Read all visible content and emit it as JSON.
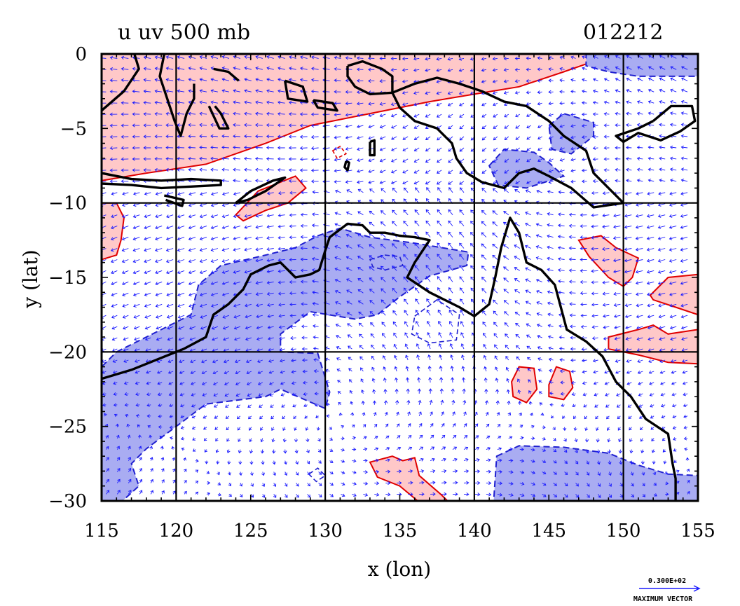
{
  "header": {
    "title": "u uv 500 mb",
    "date_code": "012212"
  },
  "chart_data": {
    "type": "map",
    "xlabel": "x (lon)",
    "ylabel": "y (lat)",
    "xlim": [
      115,
      155
    ],
    "ylim": [
      -30,
      0
    ],
    "x_ticks": [
      115,
      120,
      125,
      130,
      135,
      140,
      145,
      150,
      155
    ],
    "y_ticks": [
      0,
      -5,
      -10,
      -15,
      -20,
      -25,
      -30
    ],
    "x_tick_labels": [
      "115",
      "120",
      "125",
      "130",
      "135",
      "140",
      "145",
      "150",
      "155"
    ],
    "y_tick_labels": [
      "0",
      "−5",
      "−10",
      "−15",
      "−20",
      "−25",
      "−30"
    ],
    "grid_lon": [
      120,
      130,
      140,
      150
    ],
    "grid_lat": [
      -10,
      -20
    ],
    "positive_anomaly_color": "#ffc8c8",
    "positive_contour_color": "#e00000",
    "negative_anomaly_color": "#a9acf2",
    "negative_contour_color": "#2020d0",
    "coastline_color": "#000000",
    "vector_color": "#1a1aff",
    "reference_vector": {
      "label": "0.300E+02",
      "caption": "MAXIMUM VECTOR"
    },
    "positive_regions": [
      [
        [
          115,
          0
        ],
        [
          155,
          0
        ],
        [
          155,
          -0.3
        ],
        [
          148,
          -0.5
        ],
        [
          146,
          -1.2
        ],
        [
          143,
          -2.2
        ],
        [
          140,
          -2.7
        ],
        [
          137,
          -3.2
        ],
        [
          133,
          -4
        ],
        [
          129,
          -4.8
        ],
        [
          126,
          -6
        ],
        [
          122,
          -7.4
        ],
        [
          118,
          -8
        ],
        [
          115,
          -8.5
        ]
      ],
      [
        [
          115,
          -10
        ],
        [
          116,
          -10
        ],
        [
          116.5,
          -11
        ],
        [
          116.3,
          -12.5
        ],
        [
          116,
          -13.5
        ],
        [
          115,
          -13.8
        ]
      ],
      [
        [
          124,
          -10.8
        ],
        [
          125.5,
          -9.2
        ],
        [
          127,
          -8.6
        ],
        [
          128,
          -8.2
        ],
        [
          128.7,
          -9
        ],
        [
          127.5,
          -10
        ],
        [
          126,
          -10.5
        ],
        [
          124.5,
          -11.2
        ]
      ],
      [
        [
          147,
          -12.5
        ],
        [
          148.5,
          -12.2
        ],
        [
          149.5,
          -13
        ],
        [
          151,
          -13.7
        ],
        [
          150.6,
          -15
        ],
        [
          150,
          -15.6
        ],
        [
          149,
          -15
        ],
        [
          147.7,
          -13.6
        ]
      ],
      [
        [
          151.8,
          -16.2
        ],
        [
          153,
          -15
        ],
        [
          155,
          -14.8
        ],
        [
          155,
          -17.5
        ],
        [
          153.5,
          -17
        ],
        [
          152,
          -16.5
        ]
      ],
      [
        [
          149,
          -19
        ],
        [
          151,
          -18.5
        ],
        [
          152,
          -18.2
        ],
        [
          153,
          -18.8
        ],
        [
          155,
          -18.5
        ],
        [
          155,
          -20.8
        ],
        [
          153,
          -20.7
        ],
        [
          151,
          -20.2
        ],
        [
          149,
          -19.8
        ]
      ],
      [
        [
          142.5,
          -22
        ],
        [
          143,
          -21
        ],
        [
          144,
          -21.1
        ],
        [
          144.2,
          -22.5
        ],
        [
          143.5,
          -23.4
        ],
        [
          142.6,
          -23
        ]
      ],
      [
        [
          145,
          -22.2
        ],
        [
          145.5,
          -21
        ],
        [
          146.4,
          -21.3
        ],
        [
          146.6,
          -22.4
        ],
        [
          146,
          -23.2
        ],
        [
          145,
          -23
        ]
      ],
      [
        [
          133,
          -27.4
        ],
        [
          134.5,
          -27
        ],
        [
          135.2,
          -27.3
        ],
        [
          136,
          -27.1
        ],
        [
          136.3,
          -28.3
        ],
        [
          137.8,
          -29.6
        ],
        [
          138.2,
          -30
        ],
        [
          136.2,
          -30
        ],
        [
          135,
          -29
        ],
        [
          133.5,
          -28.4
        ]
      ]
    ],
    "negative_regions": [
      [
        [
          147.5,
          0
        ],
        [
          155,
          0
        ],
        [
          155,
          -1.5
        ],
        [
          151,
          -1.5
        ],
        [
          149,
          -1.2
        ],
        [
          147.5,
          -0.8
        ]
      ],
      [
        [
          145,
          -4.8
        ],
        [
          146,
          -4
        ],
        [
          148,
          -4.6
        ],
        [
          148,
          -5.5
        ],
        [
          146.5,
          -6.7
        ],
        [
          145.2,
          -6.4
        ]
      ],
      [
        [
          141,
          -7.5
        ],
        [
          142,
          -6.4
        ],
        [
          144,
          -6.6
        ],
        [
          145,
          -7.3
        ],
        [
          146,
          -8.2
        ],
        [
          143.5,
          -9
        ],
        [
          141.6,
          -8.8
        ]
      ],
      [
        [
          116,
          -20
        ],
        [
          118,
          -19
        ],
        [
          121,
          -17.5
        ],
        [
          121.5,
          -15.5
        ],
        [
          123,
          -14.2
        ],
        [
          126,
          -13.5
        ],
        [
          128,
          -13
        ],
        [
          129.5,
          -12.2
        ],
        [
          131,
          -11.7
        ],
        [
          133,
          -12.3
        ],
        [
          136,
          -12.7
        ],
        [
          139.6,
          -13.3
        ],
        [
          139.5,
          -14.2
        ],
        [
          137,
          -14.9
        ],
        [
          135,
          -16.3
        ],
        [
          133.5,
          -17.5
        ],
        [
          132,
          -17.8
        ],
        [
          129,
          -17.3
        ],
        [
          127,
          -18.8
        ],
        [
          127,
          -20
        ],
        [
          129.5,
          -20.1
        ],
        [
          130.3,
          -22.7
        ],
        [
          130,
          -23.8
        ],
        [
          127,
          -22.5
        ],
        [
          126,
          -23
        ],
        [
          122,
          -23.5
        ],
        [
          120,
          -25
        ],
        [
          118,
          -26.5
        ],
        [
          117,
          -27.5
        ],
        [
          117.5,
          -29
        ],
        [
          116.4,
          -30
        ],
        [
          115,
          -30
        ],
        [
          115,
          -21
        ]
      ],
      [
        [
          141.5,
          -27
        ],
        [
          143,
          -26.3
        ],
        [
          146,
          -26.4
        ],
        [
          149,
          -26.8
        ],
        [
          151,
          -27.6
        ],
        [
          153,
          -28.2
        ],
        [
          155,
          -28.3
        ],
        [
          155,
          -30
        ],
        [
          141.3,
          -30
        ]
      ]
    ],
    "coastline_segments": [
      [
        [
          115,
          -21.8
        ],
        [
          117,
          -21.2
        ],
        [
          119,
          -20.4
        ],
        [
          120.5,
          -19.8
        ],
        [
          122,
          -19
        ],
        [
          122.5,
          -17.5
        ],
        [
          123.5,
          -16.8
        ],
        [
          124.5,
          -15.8
        ],
        [
          125,
          -14.8
        ],
        [
          126.2,
          -14.2
        ],
        [
          127,
          -14
        ],
        [
          128,
          -15
        ],
        [
          129,
          -14.8
        ],
        [
          129.6,
          -14.5
        ],
        [
          130,
          -13.2
        ],
        [
          130.3,
          -12.3
        ],
        [
          131.5,
          -11.4
        ],
        [
          132.5,
          -11.5
        ],
        [
          133,
          -12
        ],
        [
          134,
          -12
        ],
        [
          135,
          -12.2
        ],
        [
          136,
          -12.3
        ],
        [
          137,
          -12.5
        ],
        [
          136,
          -14
        ],
        [
          135.5,
          -15
        ],
        [
          137,
          -16
        ],
        [
          139,
          -17
        ],
        [
          140,
          -17.6
        ],
        [
          141,
          -16.8
        ],
        [
          141.4,
          -15
        ],
        [
          141.8,
          -13
        ],
        [
          142.4,
          -11
        ],
        [
          143,
          -12
        ],
        [
          143.5,
          -14
        ],
        [
          144.5,
          -14.5
        ],
        [
          145.4,
          -15.5
        ],
        [
          145.8,
          -17
        ],
        [
          146.2,
          -18.5
        ],
        [
          147.5,
          -19.3
        ],
        [
          148.6,
          -20.3
        ],
        [
          149.5,
          -22
        ],
        [
          150.5,
          -23
        ],
        [
          151.5,
          -24.5
        ],
        [
          153,
          -25.5
        ],
        [
          153.3,
          -27.5
        ],
        [
          153.5,
          -28.5
        ],
        [
          153.5,
          -30
        ]
      ],
      [
        [
          115,
          -3.8
        ],
        [
          116.5,
          -2.5
        ],
        [
          117.5,
          -1
        ],
        [
          117.2,
          0
        ]
      ],
      [
        [
          119.2,
          0
        ],
        [
          118.9,
          -1.5
        ],
        [
          119.4,
          -3
        ],
        [
          119.9,
          -4.5
        ],
        [
          120.3,
          -5.5
        ],
        [
          120.7,
          -4
        ],
        [
          121.2,
          -3
        ],
        [
          121.2,
          -2
        ]
      ],
      [
        [
          122.5,
          -1
        ],
        [
          123.5,
          -1.2
        ],
        [
          124.2,
          -1.8
        ]
      ],
      [
        [
          122.2,
          -3.5
        ],
        [
          122.9,
          -5
        ],
        [
          123.5,
          -5
        ],
        [
          123,
          -4
        ],
        [
          122.6,
          -3.5
        ]
      ],
      [
        [
          127.3,
          -1.8
        ],
        [
          128.5,
          -2.2
        ],
        [
          128.8,
          -3.2
        ],
        [
          127.5,
          -3
        ],
        [
          127.3,
          -1.8
        ]
      ],
      [
        [
          129.2,
          -3.1
        ],
        [
          130.5,
          -3.3
        ],
        [
          130.8,
          -3.8
        ],
        [
          129.5,
          -3.6
        ],
        [
          129.2,
          -3.1
        ]
      ],
      [
        [
          131.5,
          -0.8
        ],
        [
          132.5,
          -0.5
        ],
        [
          133.8,
          -1
        ],
        [
          134.5,
          -1.5
        ],
        [
          134.5,
          -2.6
        ],
        [
          133,
          -2.7
        ],
        [
          132,
          -2.2
        ],
        [
          131.5,
          -1.5
        ],
        [
          131.5,
          -0.8
        ]
      ],
      [
        [
          134.5,
          -2.6
        ],
        [
          136,
          -2
        ],
        [
          137.5,
          -1.6
        ],
        [
          139,
          -2
        ],
        [
          140.5,
          -2.5
        ],
        [
          142,
          -3.2
        ],
        [
          143.5,
          -3.5
        ],
        [
          145,
          -4.5
        ],
        [
          146,
          -5.5
        ],
        [
          147.5,
          -6.5
        ],
        [
          148,
          -8
        ],
        [
          149,
          -9
        ],
        [
          150,
          -10
        ],
        [
          148,
          -10.3
        ],
        [
          146.5,
          -9
        ],
        [
          145,
          -8.2
        ],
        [
          144,
          -7.7
        ],
        [
          143,
          -8
        ],
        [
          142,
          -9
        ],
        [
          140.5,
          -8.6
        ],
        [
          139.5,
          -8
        ],
        [
          138.8,
          -7
        ],
        [
          138.5,
          -6
        ],
        [
          137.5,
          -5
        ],
        [
          136,
          -4.5
        ],
        [
          135,
          -3.6
        ],
        [
          134.5,
          -2.6
        ]
      ],
      [
        [
          115,
          -8
        ],
        [
          117,
          -8.4
        ],
        [
          119,
          -8.5
        ],
        [
          121,
          -8.4
        ],
        [
          123,
          -8.5
        ],
        [
          123,
          -8.8
        ],
        [
          121,
          -8.9
        ],
        [
          119,
          -9
        ],
        [
          117,
          -8.8
        ],
        [
          115,
          -8.7
        ]
      ],
      [
        [
          119.2,
          -9.5
        ],
        [
          120.5,
          -9.8
        ],
        [
          120.4,
          -10.2
        ],
        [
          119.3,
          -9.8
        ]
      ],
      [
        [
          124,
          -10
        ],
        [
          125,
          -9.2
        ],
        [
          126.5,
          -8.5
        ],
        [
          127.3,
          -8.3
        ],
        [
          126,
          -9.2
        ],
        [
          124.8,
          -9.8
        ],
        [
          124,
          -10
        ]
      ],
      [
        [
          152,
          -4.5
        ],
        [
          153.2,
          -3.5
        ],
        [
          154.6,
          -3.5
        ],
        [
          154.8,
          -4.5
        ],
        [
          153.8,
          -5.2
        ],
        [
          152.5,
          -5.8
        ],
        [
          151,
          -5.3
        ],
        [
          150,
          -5.9
        ],
        [
          149.5,
          -5.5
        ],
        [
          151,
          -5
        ],
        [
          152,
          -4.5
        ]
      ],
      [
        [
          133,
          -5.9
        ],
        [
          133.3,
          -5.8
        ],
        [
          133.3,
          -6.8
        ],
        [
          133,
          -6.8
        ],
        [
          133,
          -5.9
        ]
      ],
      [
        [
          131.4,
          -7.2
        ],
        [
          131.6,
          -7.3
        ],
        [
          131.5,
          -7.8
        ],
        [
          131.3,
          -7.6
        ],
        [
          131.4,
          -7.2
        ]
      ]
    ],
    "negative_dashed_contours": [
      [
        [
          133,
          -13.8
        ],
        [
          134,
          -13.5
        ],
        [
          135,
          -13.6
        ],
        [
          135.2,
          -14.2
        ],
        [
          134,
          -14.5
        ],
        [
          133.2,
          -14.3
        ],
        [
          133,
          -13.8
        ]
      ],
      [
        [
          136,
          -17.6
        ],
        [
          137.5,
          -16.5
        ],
        [
          139,
          -17.5
        ],
        [
          138.8,
          -19.2
        ],
        [
          137,
          -19.4
        ],
        [
          135.8,
          -18.8
        ],
        [
          136,
          -17.6
        ]
      ],
      [
        [
          128.9,
          -28.2
        ],
        [
          129.5,
          -27.8
        ],
        [
          130,
          -28.3
        ],
        [
          129.4,
          -28.7
        ],
        [
          128.9,
          -28.2
        ]
      ]
    ],
    "positive_dashed_contours": [
      [
        [
          130.5,
          -6.5
        ],
        [
          131,
          -6.2
        ],
        [
          131.4,
          -6.7
        ],
        [
          130.8,
          -7
        ],
        [
          130.5,
          -6.5
        ]
      ]
    ]
  }
}
